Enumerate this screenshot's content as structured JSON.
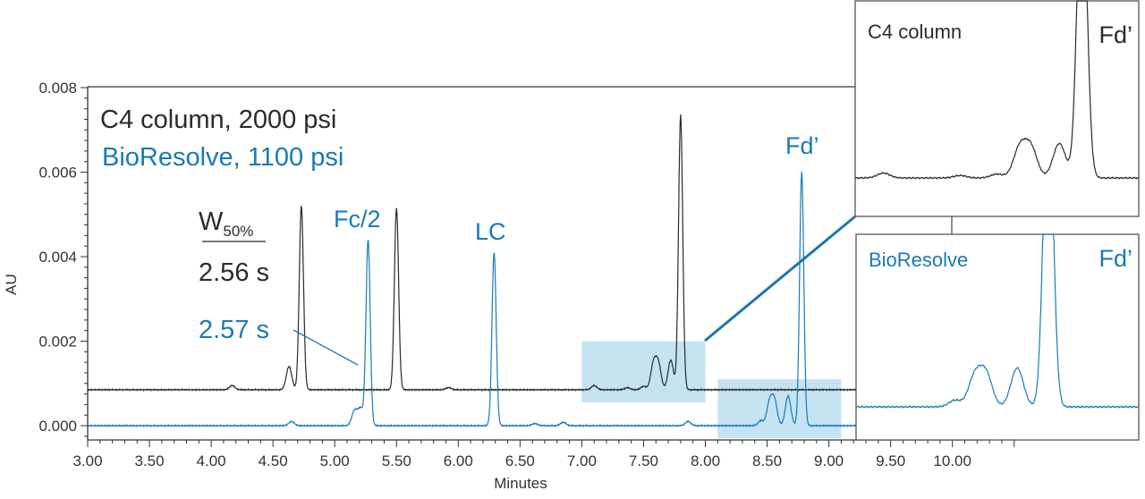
{
  "chart_data": {
    "type": "line",
    "xlabel": "Minutes",
    "ylabel": "AU",
    "xlim": [
      3.0,
      10.55
    ],
    "ylim": [
      -0.0003,
      0.008
    ],
    "x_ticks": [
      "3.00",
      "3.50",
      "4.00",
      "4.50",
      "5.00",
      "5.50",
      "6.00",
      "6.50",
      "7.00",
      "7.50",
      "8.00",
      "8.50",
      "9.00",
      "9.50",
      "10.00"
    ],
    "y_ticks": [
      "0.000",
      "0.002",
      "0.004",
      "0.006",
      "0.008"
    ],
    "grid": false,
    "colors": {
      "c4": "#2b2b2b",
      "bioresolve": "#1a7ab5",
      "highlight": "#c5e3f2"
    },
    "series": [
      {
        "name": "C4 column, 2000 psi",
        "baseline": 0.00085,
        "peaks": [
          {
            "time": 4.17,
            "height": 0.0001
          },
          {
            "time": 4.63,
            "height": 0.00055
          },
          {
            "time": 4.73,
            "height": 0.00435
          },
          {
            "time": 5.5,
            "height": 0.0043
          },
          {
            "time": 5.92,
            "height": 5e-05
          },
          {
            "time": 7.1,
            "height": 0.0001
          },
          {
            "time": 7.37,
            "height": 5e-05
          },
          {
            "time": 7.5,
            "height": 8e-05
          },
          {
            "time": 7.58,
            "height": 0.0006
          },
          {
            "time": 7.62,
            "height": 0.0006
          },
          {
            "time": 7.72,
            "height": 0.0007
          },
          {
            "time": 7.8,
            "height": 0.0065
          }
        ]
      },
      {
        "name": "BioResolve, 1100 psi",
        "baseline": 0.0,
        "peaks": [
          {
            "time": 4.65,
            "height": 0.0001
          },
          {
            "time": 5.16,
            "height": 0.00035
          },
          {
            "time": 5.21,
            "height": 0.0004
          },
          {
            "time": 5.27,
            "height": 0.0044
          },
          {
            "time": 6.29,
            "height": 0.0041
          },
          {
            "time": 6.62,
            "height": 5e-05
          },
          {
            "time": 6.85,
            "height": 8e-05
          },
          {
            "time": 7.86,
            "height": 0.0001
          },
          {
            "time": 8.45,
            "height": 0.00012
          },
          {
            "time": 8.52,
            "height": 0.00055
          },
          {
            "time": 8.56,
            "height": 0.00058
          },
          {
            "time": 8.67,
            "height": 0.0007
          },
          {
            "time": 8.78,
            "height": 0.006
          }
        ]
      }
    ],
    "highlights": [
      {
        "series": "C4 column, 2000 psi",
        "time_range": [
          7.0,
          8.0
        ],
        "au_range": [
          0.00055,
          0.002
        ]
      },
      {
        "series": "BioResolve, 1100 psi",
        "time_range": [
          8.1,
          9.1
        ],
        "au_range": [
          -0.0003,
          0.0011
        ]
      }
    ]
  },
  "annotations": {
    "legend_c4": "C4 column, 2000 psi",
    "legend_bio": "BioResolve, 1100 psi",
    "w_label": "W",
    "w_sub": "50%",
    "w_c4": "2.56 s",
    "w_bio": "2.57 s",
    "peak_fc2": "Fc/2",
    "peak_lc": "LC",
    "peak_fd": "Fd’"
  },
  "insets": [
    {
      "title": "C4 column",
      "peak_label": "Fd’",
      "series": "C4 column, 2000 psi",
      "time_range": [
        7.0,
        8.0
      ]
    },
    {
      "title": "BioResolve",
      "peak_label": "Fd’",
      "series": "BioResolve, 1100 psi",
      "time_range": [
        8.1,
        9.1
      ]
    }
  ]
}
